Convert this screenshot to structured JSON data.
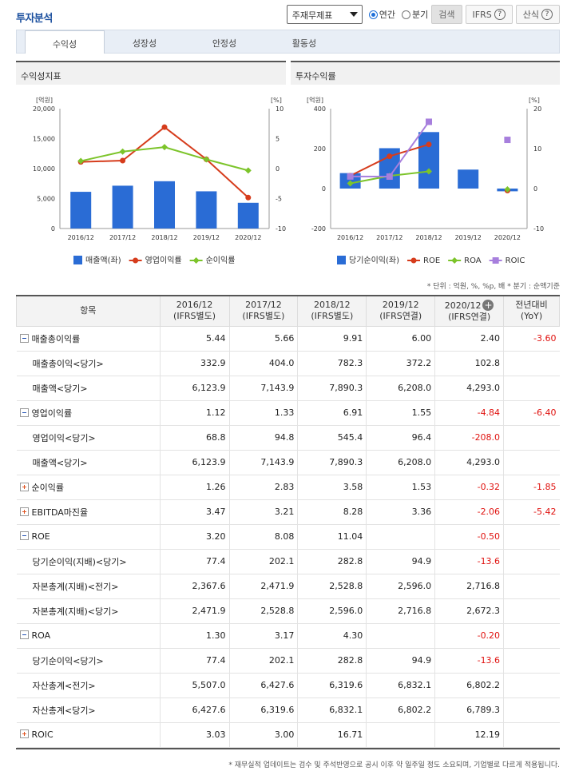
{
  "header": {
    "title": "투자분석",
    "select_value": "주재무제표",
    "radio_annual": "연간",
    "radio_quarter": "분기",
    "search_btn": "검색",
    "ifrs_btn": "IFRS",
    "calc_btn": "산식",
    "help_symbol": "?"
  },
  "tabs": [
    "수익성",
    "성장성",
    "안정성",
    "활동성"
  ],
  "left_panel": {
    "title": "수익성지표"
  },
  "right_panel": {
    "title": "투자수익률"
  },
  "colors": {
    "bar": "#2a6cd5",
    "op_margin": "#d63c1c",
    "net_margin": "#7cc42a",
    "roic": "#a77fdd"
  },
  "chart_data": [
    {
      "type": "bar",
      "title": "수익성지표",
      "categories": [
        "2016/12",
        "2017/12",
        "2018/12",
        "2019/12",
        "2020/12"
      ],
      "y_left_label": "[억원]",
      "y_right_label": "[%]",
      "y_left_range": [
        0,
        20000
      ],
      "y_right_range": [
        -10,
        10
      ],
      "y_left_ticks": [
        "20,000",
        "15,000",
        "10,000",
        "5,000",
        "0"
      ],
      "y_right_ticks": [
        "10",
        "5",
        "0",
        "-5",
        "-10"
      ],
      "series": [
        {
          "name": "매출액(좌)",
          "type": "bar",
          "axis": "left",
          "values": [
            6123.9,
            7143.9,
            7890.3,
            6208.0,
            4293.0
          ]
        },
        {
          "name": "영업이익률",
          "type": "line",
          "axis": "right",
          "values": [
            1.12,
            1.33,
            6.91,
            1.55,
            -4.84
          ]
        },
        {
          "name": "순이익률",
          "type": "line",
          "axis": "right",
          "values": [
            1.26,
            2.83,
            3.58,
            1.53,
            -0.32
          ]
        }
      ]
    },
    {
      "type": "bar",
      "title": "투자수익률",
      "categories": [
        "2016/12",
        "2017/12",
        "2018/12",
        "2019/12",
        "2020/12"
      ],
      "y_left_label": "[억원]",
      "y_right_label": "[%]",
      "y_left_range": [
        -200,
        400
      ],
      "y_right_range": [
        -10,
        20
      ],
      "y_left_ticks": [
        "400",
        "200",
        "0",
        "-200"
      ],
      "y_right_ticks": [
        "20",
        "10",
        "0",
        "-10"
      ],
      "series": [
        {
          "name": "당기순이익(좌)",
          "type": "bar",
          "axis": "left",
          "values": [
            77.4,
            202.1,
            282.8,
            94.9,
            -13.6
          ]
        },
        {
          "name": "ROE",
          "type": "line",
          "axis": "right",
          "values": [
            3.2,
            8.08,
            11.04,
            null,
            -0.5
          ]
        },
        {
          "name": "ROA",
          "type": "line",
          "axis": "right",
          "values": [
            1.3,
            3.17,
            4.3,
            null,
            -0.2
          ]
        },
        {
          "name": "ROIC",
          "type": "line",
          "axis": "right",
          "values": [
            3.03,
            3.0,
            16.71,
            null,
            12.19
          ]
        }
      ]
    }
  ],
  "units_note": "* 단위 : 억원, %, %p, 배    * 분기 : 순액기준",
  "table": {
    "headers": [
      [
        "항목",
        ""
      ],
      [
        "2016/12",
        "(IFRS별도)"
      ],
      [
        "2017/12",
        "(IFRS별도)"
      ],
      [
        "2018/12",
        "(IFRS별도)"
      ],
      [
        "2019/12",
        "(IFRS연결)"
      ],
      [
        "2020/12",
        "(IFRS연결)"
      ],
      [
        "전년대비",
        "(YoY)"
      ]
    ],
    "rows": [
      {
        "label": "매출총이익률",
        "toggle": "minus",
        "cells": [
          "5.44",
          "5.66",
          "9.91",
          "6.00",
          "2.40",
          "-3.60"
        ]
      },
      {
        "label": "매출총이익<당기>",
        "cells": [
          "332.9",
          "404.0",
          "782.3",
          "372.2",
          "102.8",
          ""
        ]
      },
      {
        "label": "매출액<당기>",
        "cells": [
          "6,123.9",
          "7,143.9",
          "7,890.3",
          "6,208.0",
          "4,293.0",
          ""
        ]
      },
      {
        "label": "영업이익률",
        "toggle": "minus",
        "cells": [
          "1.12",
          "1.33",
          "6.91",
          "1.55",
          "-4.84",
          "-6.40"
        ]
      },
      {
        "label": "영업이익<당기>",
        "cells": [
          "68.8",
          "94.8",
          "545.4",
          "96.4",
          "-208.0",
          ""
        ]
      },
      {
        "label": "매출액<당기>",
        "cells": [
          "6,123.9",
          "7,143.9",
          "7,890.3",
          "6,208.0",
          "4,293.0",
          ""
        ]
      },
      {
        "label": "순이익률",
        "toggle": "plus",
        "cells": [
          "1.26",
          "2.83",
          "3.58",
          "1.53",
          "-0.32",
          "-1.85"
        ]
      },
      {
        "label": "EBITDA마진율",
        "toggle": "plus",
        "cells": [
          "3.47",
          "3.21",
          "8.28",
          "3.36",
          "-2.06",
          "-5.42"
        ]
      },
      {
        "label": "ROE",
        "toggle": "minus",
        "cells": [
          "3.20",
          "8.08",
          "11.04",
          "",
          "-0.50",
          ""
        ]
      },
      {
        "label": "당기순이익(지배)<당기>",
        "cells": [
          "77.4",
          "202.1",
          "282.8",
          "94.9",
          "-13.6",
          ""
        ]
      },
      {
        "label": "자본총계(지배)<전기>",
        "cells": [
          "2,367.6",
          "2,471.9",
          "2,528.8",
          "2,596.0",
          "2,716.8",
          ""
        ]
      },
      {
        "label": "자본총계(지배)<당기>",
        "cells": [
          "2,471.9",
          "2,528.8",
          "2,596.0",
          "2,716.8",
          "2,672.3",
          ""
        ]
      },
      {
        "label": "ROA",
        "toggle": "minus",
        "cells": [
          "1.30",
          "3.17",
          "4.30",
          "",
          "-0.20",
          ""
        ]
      },
      {
        "label": "당기순이익<당기>",
        "cells": [
          "77.4",
          "202.1",
          "282.8",
          "94.9",
          "-13.6",
          ""
        ]
      },
      {
        "label": "자산총계<전기>",
        "cells": [
          "5,507.0",
          "6,427.6",
          "6,319.6",
          "6,832.1",
          "6,802.2",
          ""
        ]
      },
      {
        "label": "자산총계<당기>",
        "cells": [
          "6,427.6",
          "6,319.6",
          "6,832.1",
          "6,802.2",
          "6,789.3",
          ""
        ]
      },
      {
        "label": "ROIC",
        "toggle": "plus",
        "cells": [
          "3.03",
          "3.00",
          "16.71",
          "",
          "12.19",
          ""
        ]
      }
    ]
  },
  "footnote": "* 재무실적 업데이트는 검수 및 주석반영으로 공시 이후 약 일주일 정도 소요되며, 기업별로 다르게 적용됩니다."
}
